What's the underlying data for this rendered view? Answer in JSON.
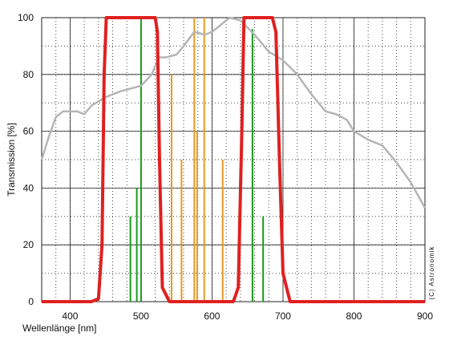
{
  "chart_data": {
    "type": "line",
    "ylabel": "Transmission [%]",
    "xlabel": "Wellenlänge [nm]",
    "credit": "(C) Astronomik",
    "xlim": [
      360,
      900
    ],
    "ylim": [
      0,
      100
    ],
    "xticks": [
      400,
      500,
      600,
      700,
      800,
      900
    ],
    "yticks": [
      0,
      20,
      40,
      60,
      80,
      100
    ],
    "grid": true,
    "series": [
      {
        "color": "#b5b5b5",
        "x": [
          360,
          370,
          380,
          390,
          410,
          420,
          430,
          450,
          470,
          500,
          515,
          525,
          535,
          550,
          560,
          575,
          590,
          600,
          610,
          625,
          640,
          660,
          680,
          700,
          720,
          740,
          760,
          775,
          790,
          800,
          820,
          840,
          860,
          880,
          900
        ],
        "values": [
          50,
          58,
          65,
          67,
          67,
          66,
          69,
          72,
          74,
          76,
          80,
          86,
          86,
          87,
          90,
          95,
          94,
          95,
          97,
          100,
          99,
          94,
          88,
          85,
          80,
          73,
          67,
          66,
          64,
          60,
          57,
          55,
          49,
          42,
          33
        ]
      },
      {
        "color": "#e02020",
        "x": [
          360,
          430,
          440,
          445,
          448,
          451,
          520,
          523,
          526,
          530,
          540,
          620,
          630,
          637,
          642,
          645,
          685,
          690,
          695,
          700,
          710,
          900
        ],
        "values": [
          0,
          0,
          1,
          20,
          80,
          100,
          100,
          95,
          50,
          5,
          0,
          0,
          0,
          5,
          60,
          100,
          100,
          95,
          50,
          10,
          0,
          0
        ]
      }
    ],
    "emission_lines": [
      {
        "color": "#1a9a1a",
        "x": [
          485,
          494,
          500,
          657,
          672
        ],
        "values": [
          30,
          40,
          100,
          96,
          30
        ]
      },
      {
        "color": "#e89a20",
        "x": [
          543,
          557,
          575,
          579,
          589,
          615
        ],
        "values": [
          80,
          50,
          100,
          60,
          100,
          50
        ]
      }
    ]
  }
}
